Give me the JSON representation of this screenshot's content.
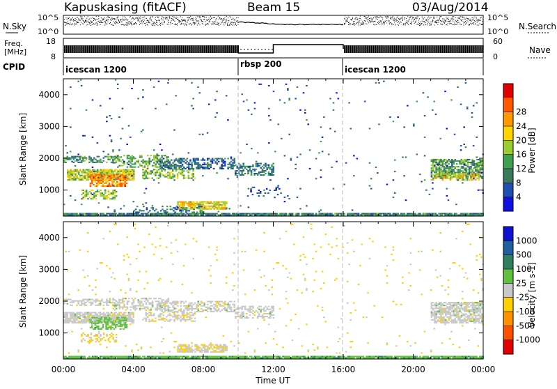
{
  "header": {
    "station": "Kapuskasing (fitACF)",
    "beam": "Beam 15",
    "date": "03/Aug/2014"
  },
  "noise_panel": {
    "left_label": "N.Sky",
    "right_label": "N.Search",
    "left_ticks": [
      "10^5",
      "10^0"
    ],
    "right_ticks": [
      "10^5",
      "10^0"
    ]
  },
  "freq_panel": {
    "left_label_top": "Freq.",
    "left_label_bottom": "[MHz]",
    "right_label": "Nave",
    "left_ticks": [
      "18",
      "8"
    ],
    "right_ticks": [
      "60",
      "0"
    ],
    "left_range": [
      8,
      18
    ],
    "right_range": [
      0,
      60
    ]
  },
  "cpid": {
    "label": "CPID",
    "segments": [
      {
        "name": "icescan 1200",
        "start": 0,
        "end": 10
      },
      {
        "name": "rbsp 200",
        "start": 10,
        "end": 16
      },
      {
        "name": "icescan 1200",
        "start": 16,
        "end": 24
      }
    ]
  },
  "colors": {
    "power": [
      "#1010e0",
      "#1f4fb0",
      "#3a7a5a",
      "#3ea050",
      "#9acd32",
      "#ffd400",
      "#ff9900",
      "#ff5a00",
      "#e00000"
    ],
    "velocity": [
      "#1010d0",
      "#2060a0",
      "#308060",
      "#60c040",
      "#c8c8c8",
      "#ffd000",
      "#ff9000",
      "#ff5000",
      "#e00000"
    ]
  },
  "chart_data": [
    {
      "type": "heatmap",
      "title": "",
      "quantity": "Power",
      "xlabel": "",
      "ylabel": "Slant Range [km]",
      "xlim": [
        0,
        24
      ],
      "ylim": [
        180,
        4500
      ],
      "yticks": [
        "1000",
        "2000",
        "3000",
        "4000"
      ],
      "colorbar": {
        "label": "Power [dB]",
        "ticks": [
          "4",
          "8",
          "12",
          "16",
          "20",
          "24",
          "28"
        ],
        "range": [
          0,
          30
        ]
      },
      "regions": [
        {
          "t0": 0.0,
          "t1": 3.2,
          "r0": 1850,
          "r1": 2050,
          "value": 10,
          "density": 0.55
        },
        {
          "t0": 0.2,
          "t1": 4.0,
          "r0": 1300,
          "r1": 1650,
          "value": 16,
          "density": 0.8
        },
        {
          "t0": 1.5,
          "t1": 3.6,
          "r0": 1100,
          "r1": 1500,
          "value": 22,
          "density": 0.75
        },
        {
          "t0": 1.0,
          "t1": 3.0,
          "r0": 700,
          "r1": 1000,
          "value": 14,
          "density": 0.5
        },
        {
          "t0": 2.8,
          "t1": 6.0,
          "r0": 1700,
          "r1": 2100,
          "value": 12,
          "density": 0.45
        },
        {
          "t0": 4.5,
          "t1": 7.5,
          "r0": 1350,
          "r1": 1650,
          "value": 14,
          "density": 0.5
        },
        {
          "t0": 5.5,
          "t1": 9.8,
          "r0": 1650,
          "r1": 2000,
          "value": 7,
          "density": 0.55
        },
        {
          "t0": 6.5,
          "t1": 9.3,
          "r0": 380,
          "r1": 620,
          "value": 18,
          "density": 0.75
        },
        {
          "t0": 4.0,
          "t1": 8.0,
          "r0": 280,
          "r1": 500,
          "value": 8,
          "density": 0.35
        },
        {
          "t0": 9.8,
          "t1": 12.0,
          "r0": 1450,
          "r1": 1850,
          "value": 8,
          "density": 0.5
        },
        {
          "t0": 10.5,
          "t1": 12.5,
          "r0": 700,
          "r1": 1100,
          "value": 5,
          "density": 0.12
        },
        {
          "t0": 21.0,
          "t1": 24.0,
          "r0": 1350,
          "r1": 1950,
          "value": 11,
          "density": 0.7
        },
        {
          "t0": 21.0,
          "t1": 24.0,
          "r0": 1300,
          "r1": 1500,
          "value": 18,
          "density": 0.5
        },
        {
          "t0": 0.0,
          "t1": 24.0,
          "r0": 190,
          "r1": 260,
          "value": 9,
          "density": 0.9
        },
        {
          "t0": 0.0,
          "t1": 24.0,
          "r0": 300,
          "r1": 4400,
          "value": 6,
          "density": 0.012
        }
      ]
    },
    {
      "type": "heatmap",
      "title": "",
      "quantity": "Velocity",
      "xlabel": "Time UT",
      "ylabel": "Slant Range [km]",
      "xlim": [
        0,
        24
      ],
      "ylim": [
        180,
        4500
      ],
      "xticks": [
        "00:00",
        "04:00",
        "08:00",
        "12:00",
        "16:00",
        "20:00",
        "00:00"
      ],
      "yticks": [
        "1000",
        "2000",
        "3000",
        "4000"
      ],
      "colorbar": {
        "label": "Velocity [m s-1]",
        "ticks": [
          "1000",
          "500",
          "100",
          "25",
          "-25",
          "-100",
          "-500",
          "-1000"
        ],
        "range": [
          -1200,
          1200
        ]
      },
      "regions": [
        {
          "t0": 0.0,
          "t1": 3.2,
          "r0": 1850,
          "r1": 2050,
          "value": 0,
          "density": 0.55
        },
        {
          "t0": 0.0,
          "t1": 4.0,
          "r0": 1300,
          "r1": 1650,
          "value": 0,
          "density": 0.85
        },
        {
          "t0": 1.5,
          "t1": 3.6,
          "r0": 1100,
          "r1": 1500,
          "value": 250,
          "density": 0.6
        },
        {
          "t0": 1.0,
          "t1": 3.0,
          "r0": 700,
          "r1": 1000,
          "value": -150,
          "density": 0.45
        },
        {
          "t0": 2.8,
          "t1": 6.0,
          "r0": 1700,
          "r1": 2100,
          "value": 0,
          "density": 0.45
        },
        {
          "t0": 4.5,
          "t1": 7.5,
          "r0": 1350,
          "r1": 1650,
          "value": -60,
          "density": 0.45
        },
        {
          "t0": 5.5,
          "t1": 9.8,
          "r0": 1650,
          "r1": 2000,
          "value": 0,
          "density": 0.5
        },
        {
          "t0": 6.5,
          "t1": 9.3,
          "r0": 380,
          "r1": 620,
          "value": -80,
          "density": 0.7
        },
        {
          "t0": 9.8,
          "t1": 12.0,
          "r0": 1450,
          "r1": 1850,
          "value": 0,
          "density": 0.5
        },
        {
          "t0": 21.0,
          "t1": 24.0,
          "r0": 1300,
          "r1": 1950,
          "value": 0,
          "density": 0.75
        },
        {
          "t0": 0.0,
          "t1": 24.0,
          "r0": 190,
          "r1": 250,
          "value": 300,
          "density": 0.9
        },
        {
          "t0": 0.0,
          "t1": 24.0,
          "r0": 300,
          "r1": 4400,
          "value": -200,
          "density": 0.015
        }
      ]
    }
  ]
}
